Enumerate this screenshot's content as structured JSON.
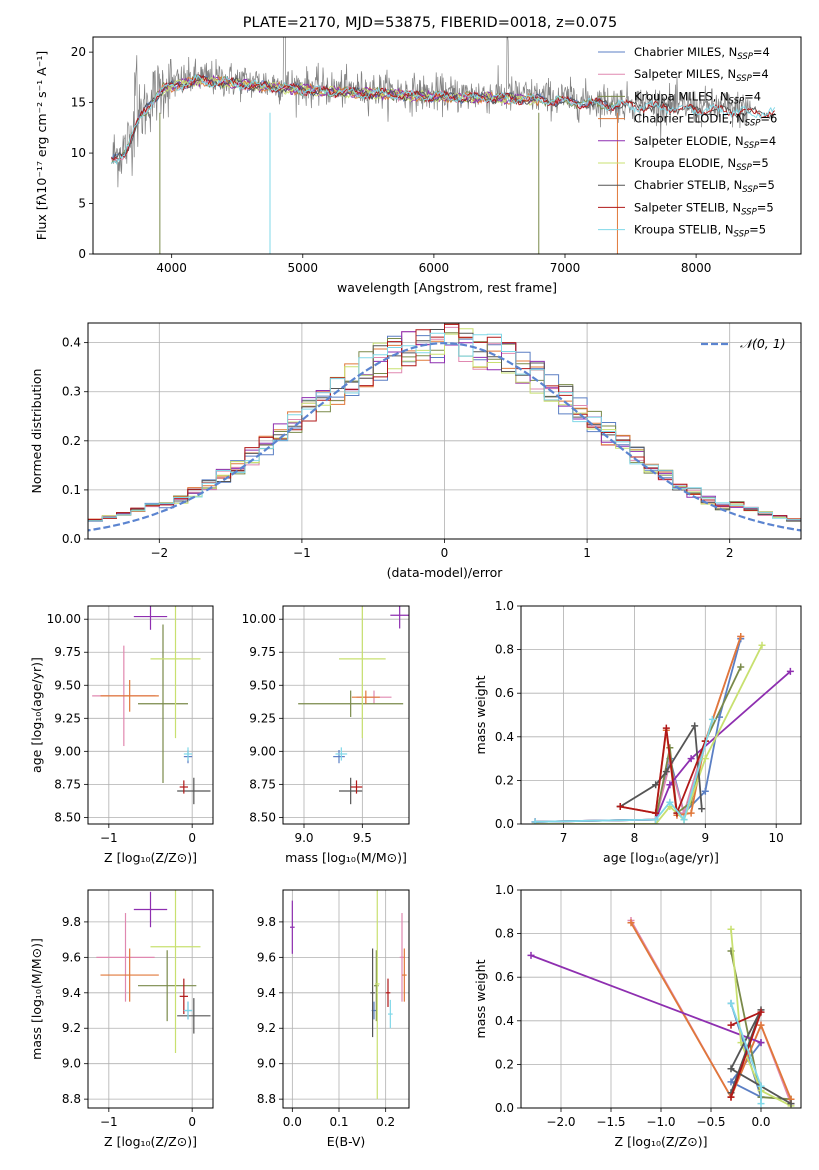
{
  "title": "PLATE=2170, MJD=53875, FIBERID=0018, z=0.075",
  "colors": {
    "Chabrier MILES": "#5b7fc4",
    "Salpeter MILES": "#e088b0",
    "Kroupa MILES": "#7a8a4a",
    "Chabrier ELODIE": "#e0783a",
    "Salpeter ELODIE": "#8e2fb0",
    "Kroupa ELODIE": "#c8e070",
    "Chabrier STELIB": "#555555",
    "Salpeter STELIB": "#b01818",
    "Kroupa STELIB": "#80d8e8",
    "normal_fit": "#5b84d0",
    "data": "#808080"
  },
  "chart_data": [
    {
      "id": "spectrum",
      "type": "line",
      "title": "PLATE=2170, MJD=53875, FIBERID=0018, z=0.075",
      "xlabel": "wavelength [Angstrom, rest frame]",
      "ylabel": "Flux [fλ10⁻¹⁷ erg cm⁻² s⁻¹ A⁻¹]",
      "xlim": [
        3400,
        8800
      ],
      "ylim": [
        0,
        21.5
      ],
      "xticks": [
        4000,
        5000,
        6000,
        7000,
        8000
      ],
      "yticks": [
        0,
        5,
        10,
        15,
        20
      ],
      "grid": false,
      "legend_position": "top-right",
      "legend": [
        {
          "name": "Chabrier MILES",
          "nssp": "4"
        },
        {
          "name": "Salpeter MILES",
          "nssp": "4"
        },
        {
          "name": "Kroupa MILES",
          "nssp": "4"
        },
        {
          "name": "Chabrier ELODIE",
          "nssp": "6"
        },
        {
          "name": "Salpeter ELODIE",
          "nssp": "4"
        },
        {
          "name": "Kroupa ELODIE",
          "nssp": "5"
        },
        {
          "name": "Chabrier STELIB",
          "nssp": "5"
        },
        {
          "name": "Salpeter STELIB",
          "nssp": "5"
        },
        {
          "name": "Kroupa STELIB",
          "nssp": "5"
        }
      ],
      "data_envelope": {
        "x": [
          3550,
          3650,
          3750,
          3850,
          3950,
          4050,
          4200,
          4400,
          4600,
          4800,
          5000,
          5200,
          5400,
          5600,
          5800,
          6000,
          6200,
          6400,
          6600,
          6800,
          7000,
          7200,
          7400,
          7600,
          7800,
          8000,
          8200,
          8400
        ],
        "y": [
          9.5,
          10.5,
          13.5,
          15.5,
          16.8,
          17.0,
          17.5,
          17.3,
          17.0,
          16.8,
          16.6,
          16.4,
          16.3,
          16.2,
          16.0,
          15.9,
          15.8,
          15.8,
          15.7,
          15.6,
          15.4,
          15.2,
          15.0,
          14.9,
          14.8,
          14.6,
          14.5,
          14.3
        ]
      },
      "model_starts": {
        "MILES": 3540,
        "ELODIE": 3900,
        "STELIB": 3540
      },
      "model_ends": {
        "MILES": 7400,
        "ELODIE": 6800,
        "STELIB": 8600
      }
    },
    {
      "id": "residuals",
      "type": "line",
      "xlabel": "(data-model)/error",
      "ylabel": "Normed distribution",
      "xlim": [
        -2.5,
        2.5
      ],
      "ylim": [
        0,
        0.44
      ],
      "xticks": [
        -2,
        -1,
        0,
        1,
        2
      ],
      "yticks": [
        0.0,
        0.1,
        0.2,
        0.3,
        0.4
      ],
      "grid": true,
      "legend_position": "top-right",
      "legend": [
        "𝒩(0, 1)"
      ],
      "normal": {
        "mu": 0,
        "sigma": 1
      }
    },
    {
      "id": "age-vs-z",
      "type": "scatter",
      "xlabel": "Z [log₁₀(Z/Z⊙)]",
      "ylabel": "age  [log₁₀(age/yr)]",
      "xlim": [
        -1.25,
        0.25
      ],
      "ylim": [
        8.45,
        10.1
      ],
      "xticks": [
        -1,
        0
      ],
      "yticks": [
        8.5,
        8.75,
        9.0,
        9.25,
        9.5,
        9.75,
        10.0
      ],
      "grid": true,
      "series": [
        {
          "model": "Chabrier MILES",
          "x": -0.05,
          "y": 8.96,
          "xerr": 0.05,
          "yerr": 0.05
        },
        {
          "model": "Salpeter MILES",
          "x": -0.82,
          "y": 9.42,
          "xerr": 0.38,
          "yerr": 0.38
        },
        {
          "model": "Kroupa MILES",
          "x": -0.35,
          "y": 9.36,
          "xerr": 0.3,
          "yerr": 0.6
        },
        {
          "model": "Chabrier ELODIE",
          "x": -0.75,
          "y": 9.42,
          "xerr": 0.35,
          "yerr": 0.12
        },
        {
          "model": "Salpeter ELODIE",
          "x": -0.5,
          "y": 10.02,
          "xerr": 0.2,
          "yerr": 0.1
        },
        {
          "model": "Kroupa ELODIE",
          "x": -0.2,
          "y": 9.7,
          "xerr": 0.3,
          "yerr": 0.6
        },
        {
          "model": "Chabrier STELIB",
          "x": 0.02,
          "y": 8.7,
          "xerr": 0.2,
          "yerr": 0.1
        },
        {
          "model": "Salpeter STELIB",
          "x": -0.1,
          "y": 8.73,
          "xerr": 0.05,
          "yerr": 0.05
        },
        {
          "model": "Kroupa STELIB",
          "x": -0.05,
          "y": 8.98,
          "xerr": 0.05,
          "yerr": 0.05
        }
      ]
    },
    {
      "id": "age-vs-mass",
      "type": "scatter",
      "xlabel": "mass [log₁₀(M/M⊙)]",
      "ylabel": "",
      "xlim": [
        8.82,
        9.9
      ],
      "ylim": [
        8.45,
        10.1
      ],
      "xticks": [
        9.0,
        9.5
      ],
      "yticks": [
        8.5,
        8.75,
        9.0,
        9.25,
        9.5,
        9.75,
        10.0
      ],
      "grid": true,
      "series": [
        {
          "model": "Chabrier MILES",
          "x": 9.3,
          "y": 8.96,
          "xerr": 0.05,
          "yerr": 0.05
        },
        {
          "model": "Salpeter MILES",
          "x": 9.6,
          "y": 9.41,
          "xerr": 0.15,
          "yerr": 0.05
        },
        {
          "model": "Kroupa MILES",
          "x": 9.4,
          "y": 9.36,
          "xerr": 0.45,
          "yerr": 0.1
        },
        {
          "model": "Chabrier ELODIE",
          "x": 9.53,
          "y": 9.41,
          "xerr": 0.12,
          "yerr": 0.05
        },
        {
          "model": "Salpeter ELODIE",
          "x": 9.82,
          "y": 10.03,
          "xerr": 0.08,
          "yerr": 0.1
        },
        {
          "model": "Kroupa ELODIE",
          "x": 9.5,
          "y": 9.7,
          "xerr": 0.2,
          "yerr": 0.6
        },
        {
          "model": "Chabrier STELIB",
          "x": 9.4,
          "y": 8.7,
          "xerr": 0.1,
          "yerr": 0.1
        },
        {
          "model": "Salpeter STELIB",
          "x": 9.45,
          "y": 8.73,
          "xerr": 0.05,
          "yerr": 0.05
        },
        {
          "model": "Kroupa STELIB",
          "x": 9.32,
          "y": 8.98,
          "xerr": 0.05,
          "yerr": 0.05
        }
      ]
    },
    {
      "id": "weight-vs-age",
      "type": "line",
      "xlabel": "age  [log₁₀(age/yr)]",
      "ylabel": "mass weight",
      "xlim": [
        6.4,
        10.35
      ],
      "ylim": [
        0,
        1.0
      ],
      "xticks": [
        7,
        8,
        9,
        10
      ],
      "yticks": [
        0.0,
        0.2,
        0.4,
        0.6,
        0.8,
        1.0
      ],
      "grid": true,
      "series": [
        {
          "model": "Chabrier MILES",
          "x": [
            6.6,
            8.3,
            8.5,
            8.7,
            9.0,
            9.2,
            9.5
          ],
          "y": [
            0.01,
            0.02,
            0.3,
            0.05,
            0.15,
            0.49,
            0.85
          ]
        },
        {
          "model": "Salpeter MILES",
          "x": [
            6.6,
            8.3,
            8.5,
            8.7,
            9.0,
            9.5
          ],
          "y": [
            0.01,
            0.02,
            0.28,
            0.05,
            0.38,
            0.86
          ]
        },
        {
          "model": "Kroupa MILES",
          "x": [
            6.6,
            8.3,
            8.5,
            8.6,
            8.8,
            9.0,
            9.5
          ],
          "y": [
            0.01,
            0.02,
            0.35,
            0.05,
            0.1,
            0.38,
            0.72
          ]
        },
        {
          "model": "Chabrier ELODIE",
          "x": [
            7.8,
            8.3,
            8.45,
            8.6,
            8.8,
            9.0,
            9.5
          ],
          "y": [
            0.08,
            0.05,
            0.43,
            0.04,
            0.05,
            0.38,
            0.86
          ]
        },
        {
          "model": "Salpeter ELODIE",
          "x": [
            6.6,
            8.3,
            8.5,
            8.8,
            10.2
          ],
          "y": [
            0.01,
            0.02,
            0.18,
            0.3,
            0.7
          ]
        },
        {
          "model": "Kroupa ELODIE",
          "x": [
            6.6,
            8.3,
            8.5,
            8.7,
            9.0,
            9.8
          ],
          "y": [
            0.0,
            0.0,
            0.08,
            0.02,
            0.3,
            0.82
          ]
        },
        {
          "model": "Chabrier STELIB",
          "x": [
            7.8,
            8.3,
            8.45,
            8.85,
            8.95
          ],
          "y": [
            0.08,
            0.18,
            0.24,
            0.45,
            0.07
          ]
        },
        {
          "model": "Salpeter STELIB",
          "x": [
            7.8,
            8.3,
            8.45,
            8.6,
            9.0
          ],
          "y": [
            0.08,
            0.05,
            0.44,
            0.05,
            0.38
          ]
        },
        {
          "model": "Kroupa STELIB",
          "x": [
            6.6,
            8.3,
            8.5,
            8.7,
            9.1
          ],
          "y": [
            0.01,
            0.02,
            0.1,
            0.02,
            0.48
          ]
        }
      ]
    },
    {
      "id": "mass-vs-z",
      "type": "scatter",
      "xlabel": "Z [log₁₀(Z/Z⊙)]",
      "ylabel": "mass [log₁₀(M/M⊙)]",
      "xlim": [
        -1.25,
        0.25
      ],
      "ylim": [
        8.75,
        9.98
      ],
      "xticks": [
        -1,
        0
      ],
      "yticks": [
        8.8,
        9.0,
        9.2,
        9.4,
        9.6,
        9.8
      ],
      "grid": true,
      "series": [
        {
          "model": "Chabrier MILES",
          "x": -0.05,
          "y": 9.3,
          "xerr": 0.05,
          "yerr": 0.05
        },
        {
          "model": "Salpeter MILES",
          "x": -0.8,
          "y": 9.6,
          "xerr": 0.35,
          "yerr": 0.25
        },
        {
          "model": "Kroupa MILES",
          "x": -0.3,
          "y": 9.44,
          "xerr": 0.35,
          "yerr": 0.2
        },
        {
          "model": "Chabrier ELODIE",
          "x": -0.75,
          "y": 9.5,
          "xerr": 0.35,
          "yerr": 0.15
        },
        {
          "model": "Salpeter ELODIE",
          "x": -0.5,
          "y": 9.87,
          "xerr": 0.2,
          "yerr": 0.1
        },
        {
          "model": "Kroupa ELODIE",
          "x": -0.2,
          "y": 9.66,
          "xerr": 0.3,
          "yerr": 0.6
        },
        {
          "model": "Chabrier STELIB",
          "x": 0.02,
          "y": 9.27,
          "xerr": 0.2,
          "yerr": 0.1
        },
        {
          "model": "Salpeter STELIB",
          "x": -0.1,
          "y": 9.38,
          "xerr": 0.05,
          "yerr": 0.1
        },
        {
          "model": "Kroupa STELIB",
          "x": -0.05,
          "y": 9.3,
          "xerr": 0.05,
          "yerr": 0.05
        }
      ]
    },
    {
      "id": "mass-vs-ebv",
      "type": "scatter",
      "xlabel": "E(B-V)",
      "ylabel": "",
      "xlim": [
        -0.02,
        0.25
      ],
      "ylim": [
        8.75,
        9.98
      ],
      "xticks": [
        0.0,
        0.1,
        0.2
      ],
      "yticks": [
        8.8,
        9.0,
        9.2,
        9.4,
        9.6,
        9.8
      ],
      "grid": true,
      "series": [
        {
          "model": "Chabrier MILES",
          "x": 0.175,
          "y": 9.3,
          "xerr": 0.005,
          "yerr": 0.05
        },
        {
          "model": "Salpeter MILES",
          "x": 0.235,
          "y": 9.6,
          "xerr": 0.005,
          "yerr": 0.25
        },
        {
          "model": "Kroupa MILES",
          "x": 0.18,
          "y": 9.44,
          "xerr": 0.005,
          "yerr": 0.2
        },
        {
          "model": "Chabrier ELODIE",
          "x": 0.24,
          "y": 9.5,
          "xerr": 0.005,
          "yerr": 0.15
        },
        {
          "model": "Salpeter ELODIE",
          "x": 0.0,
          "y": 9.77,
          "xerr": 0.005,
          "yerr": 0.15
        },
        {
          "model": "Kroupa ELODIE",
          "x": 0.182,
          "y": 9.45,
          "xerr": 0.005,
          "yerr": 0.65
        },
        {
          "model": "Chabrier STELIB",
          "x": 0.172,
          "y": 9.4,
          "xerr": 0.005,
          "yerr": 0.25
        },
        {
          "model": "Salpeter STELIB",
          "x": 0.205,
          "y": 9.4,
          "xerr": 0.005,
          "yerr": 0.08
        },
        {
          "model": "Kroupa STELIB",
          "x": 0.21,
          "y": 9.28,
          "xerr": 0.005,
          "yerr": 0.08
        }
      ]
    },
    {
      "id": "weight-vs-z",
      "type": "line",
      "xlabel": "Z [log₁₀(Z/Z⊙)]",
      "ylabel": "mass weight",
      "xlim": [
        -2.4,
        0.4
      ],
      "ylim": [
        0,
        1.0
      ],
      "xticks": [
        -2.0,
        -1.5,
        -1.0,
        -0.5,
        0.0
      ],
      "yticks": [
        0.0,
        0.2,
        0.4,
        0.6,
        0.8,
        1.0
      ],
      "grid": true,
      "series": [
        {
          "model": "Chabrier MILES",
          "x": [
            -0.3,
            0.0,
            -0.3,
            0.0
          ],
          "y": [
            0.48,
            0.05,
            0.12,
            0.3
          ]
        },
        {
          "model": "Salpeter MILES",
          "x": [
            -1.3,
            -0.3,
            0.0,
            0.3
          ],
          "y": [
            0.86,
            0.05,
            0.38,
            0.02
          ]
        },
        {
          "model": "Kroupa MILES",
          "x": [
            -0.3,
            0.0,
            0.3
          ],
          "y": [
            0.72,
            0.05,
            0.04
          ]
        },
        {
          "model": "Chabrier ELODIE",
          "x": [
            -1.3,
            -0.3,
            0.0,
            0.3
          ],
          "y": [
            0.85,
            0.05,
            0.38,
            0.04
          ]
        },
        {
          "model": "Salpeter ELODIE",
          "x": [
            -2.3,
            0.0
          ],
          "y": [
            0.7,
            0.3
          ]
        },
        {
          "model": "Kroupa ELODIE",
          "x": [
            -0.3,
            -0.2,
            0.0,
            0.3
          ],
          "y": [
            0.82,
            0.3,
            0.08,
            0.01
          ]
        },
        {
          "model": "Chabrier STELIB",
          "x": [
            -0.3,
            0.0,
            -0.3,
            0.0,
            0.3
          ],
          "y": [
            0.07,
            0.45,
            0.18,
            0.1,
            0.02
          ]
        },
        {
          "model": "Salpeter STELIB",
          "x": [
            -0.3,
            0.0,
            -0.3
          ],
          "y": [
            0.05,
            0.44,
            0.38
          ]
        },
        {
          "model": "Kroupa STELIB",
          "x": [
            -0.3,
            0.0,
            0.0
          ],
          "y": [
            0.48,
            0.1,
            0.02
          ]
        }
      ]
    }
  ]
}
